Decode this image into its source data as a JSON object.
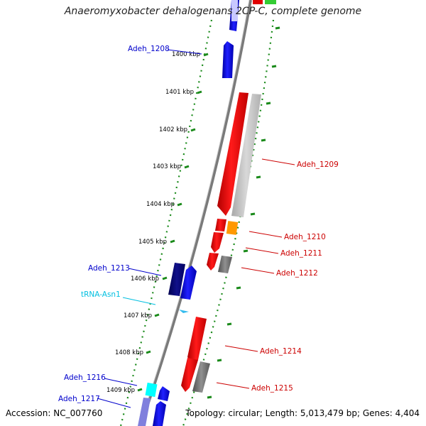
{
  "title": "Anaeromyxobacter dehalogenans 2CP-C, complete genome",
  "accession_text": "Accession: NC_007760",
  "topology_text": "Topology: circular; Length: 5,013,479 bp; Genes: 4,404",
  "colors": {
    "backbone": "#808080",
    "tick": "#1a8a1a",
    "reverse_label": "#0000cc",
    "forward_label": "#cc0000",
    "trna_label": "#00bfe0"
  },
  "scale_labels": [
    "1400 kbp",
    "1401 kbp",
    "1402 kbp",
    "1403 kbp",
    "1404 kbp",
    "1405 kbp",
    "1406 kbp",
    "1407 kbp",
    "1408 kbp",
    "1409 kbp"
  ],
  "gene_labels": [
    {
      "text": "Adeh_1208",
      "strand": "reverse"
    },
    {
      "text": "Adeh_1209",
      "strand": "forward"
    },
    {
      "text": "Adeh_1210",
      "strand": "forward"
    },
    {
      "text": "Adeh_1211",
      "strand": "forward"
    },
    {
      "text": "Adeh_1212",
      "strand": "forward"
    },
    {
      "text": "Adeh_1213",
      "strand": "reverse"
    },
    {
      "text": "tRNA-Asn1",
      "strand": "trna"
    },
    {
      "text": "Adeh_1214",
      "strand": "forward"
    },
    {
      "text": "Adeh_1215",
      "strand": "forward"
    },
    {
      "text": "Adeh_1216",
      "strand": "reverse"
    },
    {
      "text": "Adeh_1217",
      "strand": "reverse"
    }
  ]
}
